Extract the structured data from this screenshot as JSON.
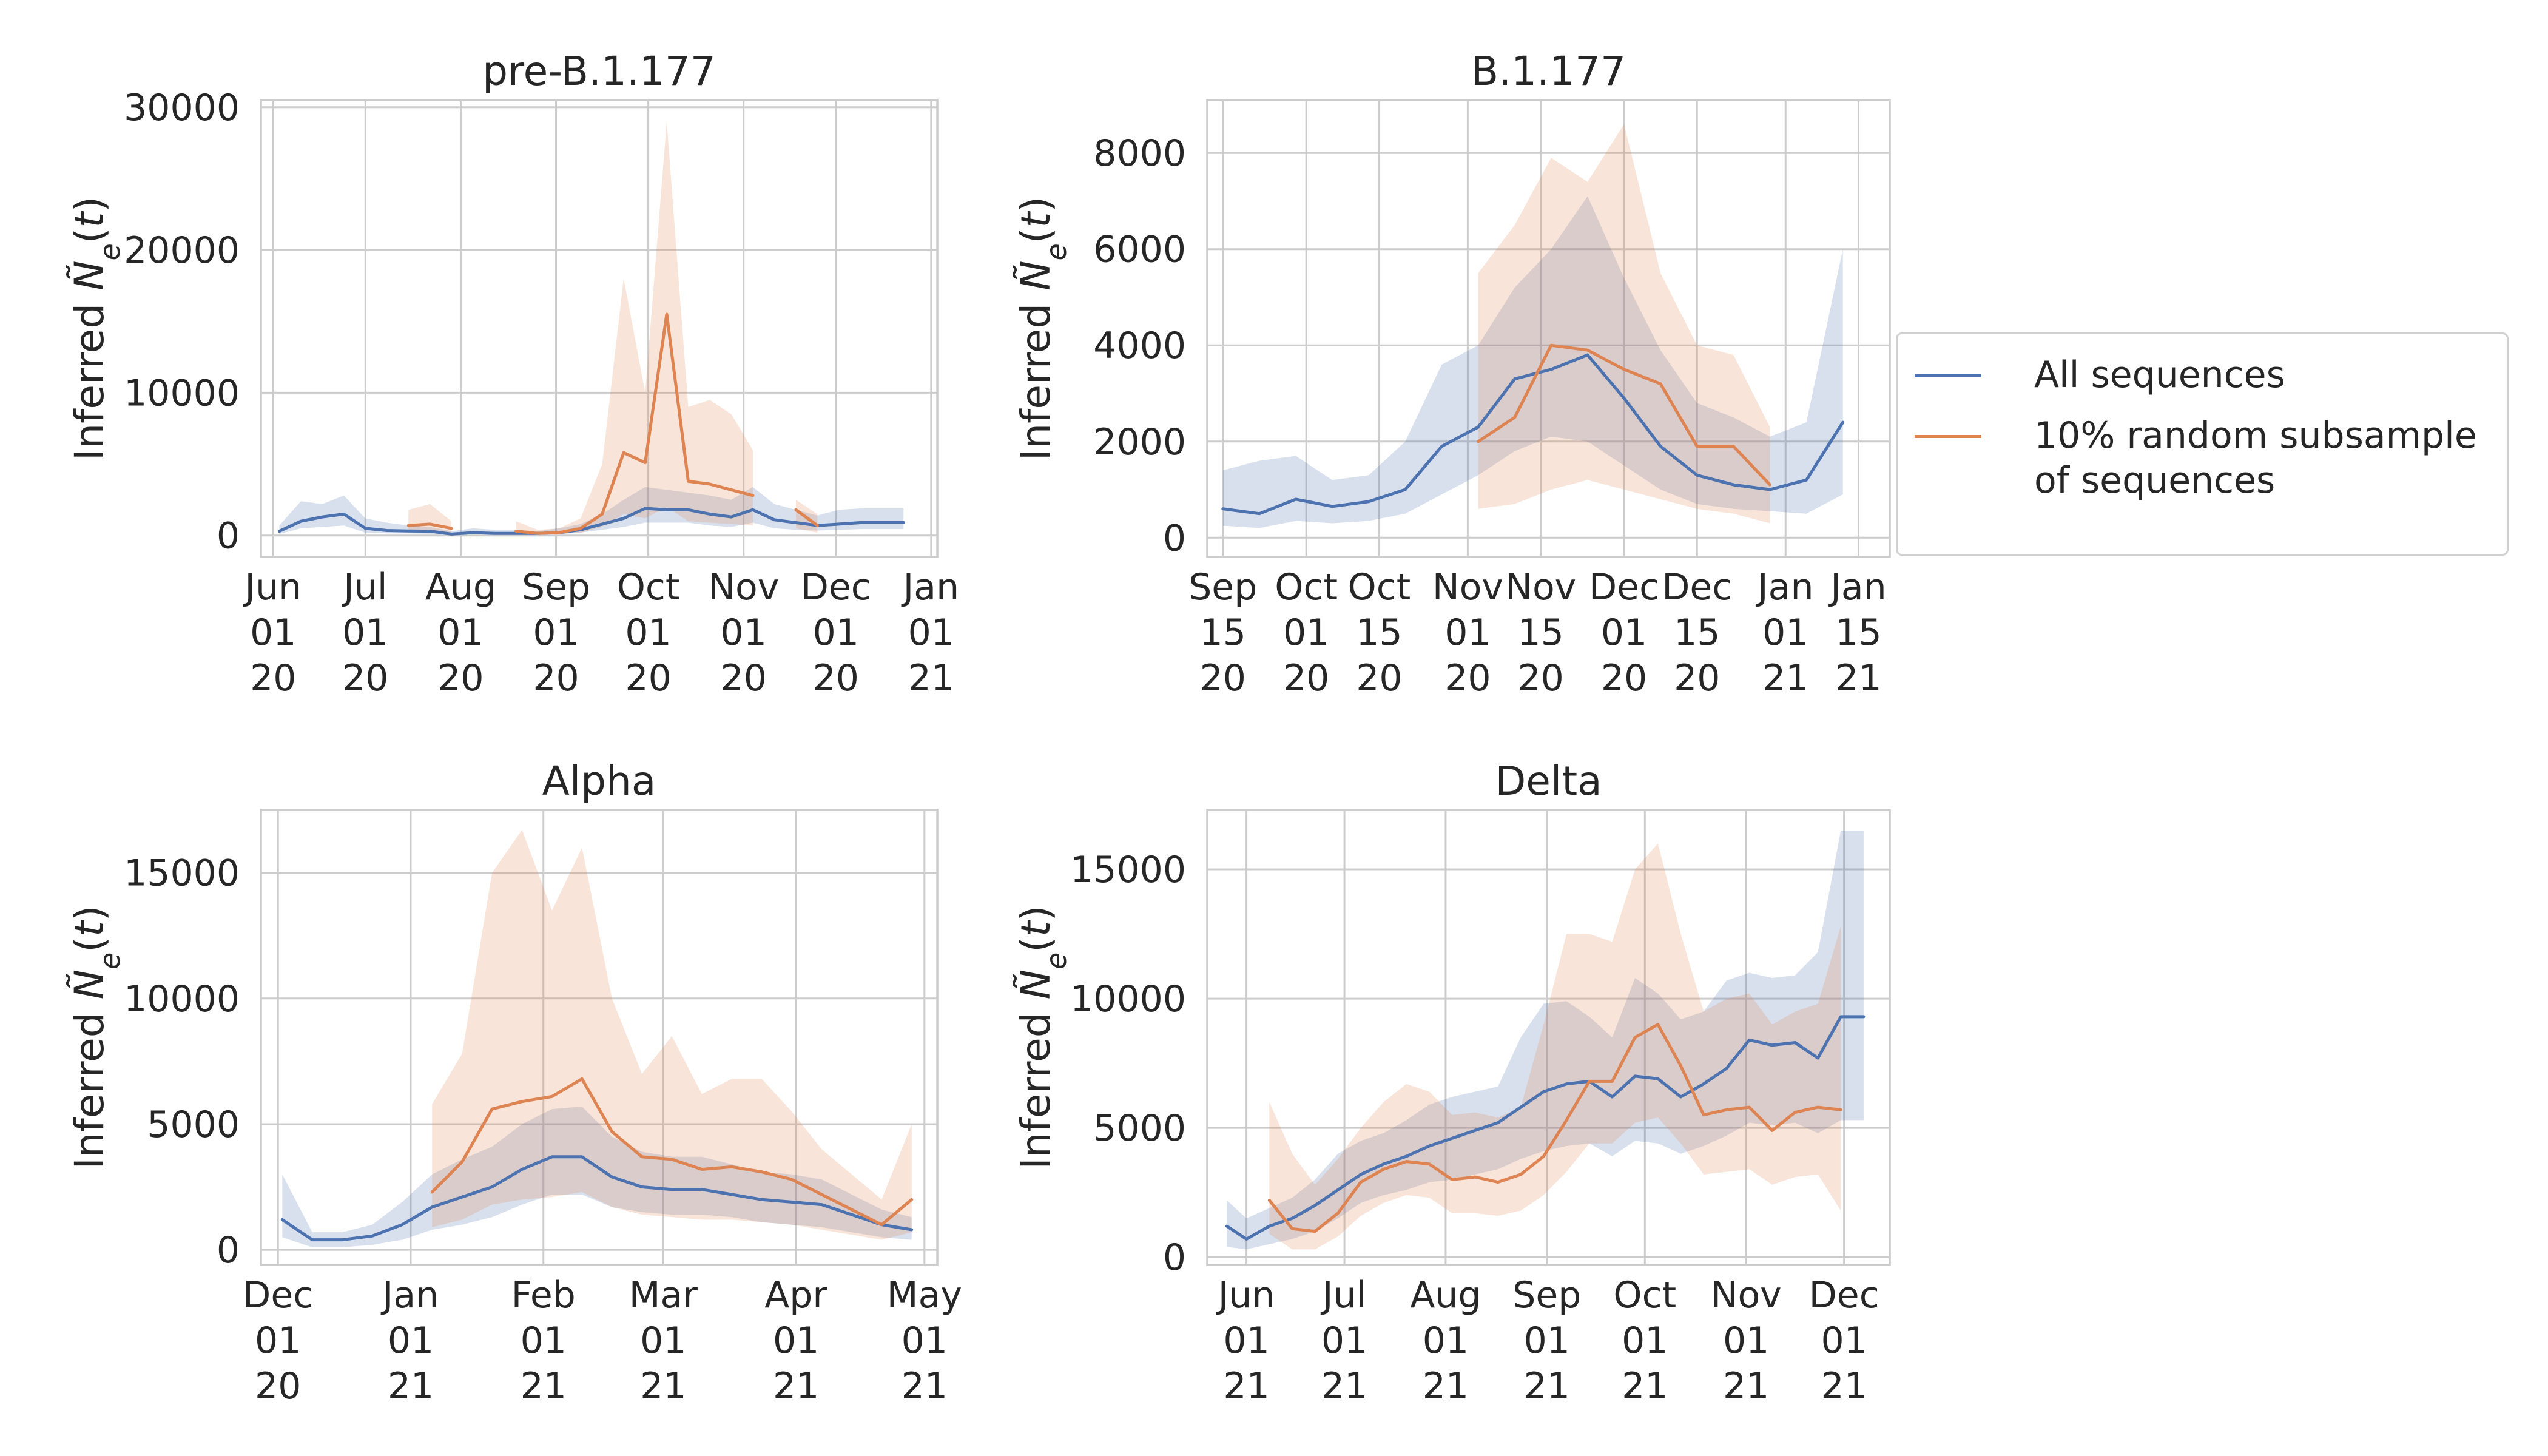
{
  "figure": {
    "legend": {
      "placement": "right",
      "entries": [
        {
          "label": "All sequences",
          "color": "#4c72b0"
        },
        {
          "label": "10% random subsample\nof sequences",
          "color": "#dd8452"
        }
      ]
    }
  },
  "chart_data": [
    {
      "type": "line",
      "title": "pre-B.1.177",
      "xlabel": "",
      "ylabel": "Inferred $\\tilde{N}_e(t)$",
      "xlim": [
        "2020-05-28",
        "2021-01-03"
      ],
      "ylim": [
        -1500,
        30500
      ],
      "yticks": [
        0,
        10000,
        20000,
        30000
      ],
      "xticks": [
        {
          "date": "2020-06-01",
          "label": "Jun\n01\n20"
        },
        {
          "date": "2020-07-01",
          "label": "Jul\n01\n20"
        },
        {
          "date": "2020-08-01",
          "label": "Aug\n01\n20"
        },
        {
          "date": "2020-09-01",
          "label": "Sep\n01\n20"
        },
        {
          "date": "2020-10-01",
          "label": "Oct\n01\n20"
        },
        {
          "date": "2020-11-01",
          "label": "Nov\n01\n20"
        },
        {
          "date": "2020-12-01",
          "label": "Dec\n01\n20"
        },
        {
          "date": "2021-01-01",
          "label": "Jan\n01\n21"
        }
      ],
      "grid": true,
      "series": [
        {
          "name": "All sequences",
          "color": "#4c72b0",
          "x": [
            "2020-06-03",
            "2020-06-10",
            "2020-06-17",
            "2020-06-24",
            "2020-07-01",
            "2020-07-08",
            "2020-07-15",
            "2020-07-22",
            "2020-07-29",
            "2020-08-05",
            "2020-08-12",
            "2020-08-19",
            "2020-08-26",
            "2020-09-02",
            "2020-09-09",
            "2020-09-16",
            "2020-09-23",
            "2020-09-30",
            "2020-10-07",
            "2020-10-14",
            "2020-10-21",
            "2020-10-28",
            "2020-11-04",
            "2020-11-11",
            "2020-11-18",
            "2020-11-25",
            "2020-12-02",
            "2020-12-09",
            "2020-12-16",
            "2020-12-23"
          ],
          "y": [
            300,
            1000,
            1300,
            1500,
            500,
            350,
            320,
            300,
            100,
            200,
            150,
            150,
            150,
            200,
            400,
            800,
            1200,
            1900,
            1800,
            1800,
            1500,
            1300,
            1800,
            1100,
            900,
            700,
            800,
            900,
            900,
            900
          ],
          "lower": [
            100,
            500,
            600,
            700,
            200,
            150,
            150,
            120,
            50,
            100,
            80,
            80,
            80,
            100,
            200,
            400,
            600,
            900,
            900,
            900,
            700,
            600,
            900,
            500,
            400,
            350,
            400,
            450,
            450,
            450
          ],
          "upper": [
            700,
            2400,
            2200,
            2800,
            1200,
            900,
            700,
            600,
            300,
            500,
            400,
            400,
            300,
            500,
            800,
            1500,
            2500,
            3400,
            3200,
            3000,
            2800,
            2500,
            3400,
            2200,
            1800,
            1400,
            1800,
            1900,
            1900,
            1900
          ]
        },
        {
          "name": "10% random subsample\nof sequences",
          "color": "#dd8452",
          "x": [
            "2020-07-15",
            "2020-07-22",
            "2020-07-29",
            "2020-08-05",
            "2020-08-12",
            "2020-08-19",
            "2020-08-26",
            "2020-09-02",
            "2020-09-09",
            "2020-09-16",
            "2020-09-23",
            "2020-09-30",
            "2020-10-07",
            "2020-10-14",
            "2020-10-21",
            "2020-10-28",
            "2020-11-04",
            "2020-11-11",
            "2020-11-18",
            "2020-11-25"
          ],
          "y": [
            700,
            800,
            500,
            null,
            null,
            300,
            150,
            200,
            500,
            1500,
            5800,
            5100,
            15500,
            3800,
            3600,
            3200,
            2800,
            null,
            1800,
            700
          ],
          "lower": [
            300,
            300,
            200,
            null,
            null,
            100,
            50,
            100,
            200,
            600,
            1500,
            1200,
            2000,
            1000,
            900,
            800,
            700,
            null,
            500,
            200
          ],
          "upper": [
            1800,
            2200,
            1000,
            null,
            null,
            1000,
            400,
            500,
            1200,
            5000,
            18000,
            10000,
            29000,
            9000,
            9500,
            8500,
            6000,
            null,
            2500,
            1500
          ]
        }
      ]
    },
    {
      "type": "line",
      "title": "B.1.177",
      "xlabel": "",
      "ylabel": "Inferred $\\tilde{N}_e(t)$",
      "xlim": [
        "2020-09-12",
        "2021-01-21"
      ],
      "ylim": [
        -400,
        9100
      ],
      "yticks": [
        0,
        2000,
        4000,
        6000,
        8000
      ],
      "xticks": [
        {
          "date": "2020-09-15",
          "label": "Sep\n15\n20"
        },
        {
          "date": "2020-10-01",
          "label": "Oct\n01\n20"
        },
        {
          "date": "2020-10-15",
          "label": "Oct\n15\n20"
        },
        {
          "date": "2020-11-01",
          "label": "Nov\n01\n20"
        },
        {
          "date": "2020-11-15",
          "label": "Nov\n15\n20"
        },
        {
          "date": "2020-12-01",
          "label": "Dec\n01\n20"
        },
        {
          "date": "2020-12-15",
          "label": "Dec\n15\n20"
        },
        {
          "date": "2021-01-01",
          "label": "Jan\n01\n21"
        },
        {
          "date": "2021-01-15",
          "label": "Jan\n15\n21"
        }
      ],
      "grid": true,
      "series": [
        {
          "name": "All sequences",
          "color": "#4c72b0",
          "x": [
            "2020-09-15",
            "2020-09-22",
            "2020-09-29",
            "2020-10-06",
            "2020-10-13",
            "2020-10-20",
            "2020-10-27",
            "2020-11-03",
            "2020-11-10",
            "2020-11-17",
            "2020-11-24",
            "2020-12-01",
            "2020-12-08",
            "2020-12-15",
            "2020-12-22",
            "2020-12-29",
            "2021-01-05",
            "2021-01-12"
          ],
          "y": [
            600,
            500,
            800,
            650,
            750,
            1000,
            1900,
            2300,
            3300,
            3500,
            3800,
            2900,
            1900,
            1300,
            1100,
            1000,
            1200,
            2400
          ],
          "lower": [
            250,
            200,
            350,
            300,
            350,
            500,
            900,
            1300,
            1800,
            2100,
            2000,
            1500,
            1000,
            700,
            600,
            550,
            500,
            900
          ],
          "upper": [
            1400,
            1600,
            1700,
            1200,
            1300,
            2000,
            3600,
            4000,
            5200,
            6000,
            7100,
            5400,
            3900,
            2800,
            2500,
            2100,
            2400,
            6000
          ]
        },
        {
          "name": "10% random subsample\nof sequences",
          "color": "#dd8452",
          "x": [
            "2020-11-03",
            "2020-11-10",
            "2020-11-17",
            "2020-11-24",
            "2020-12-01",
            "2020-12-08",
            "2020-12-15",
            "2020-12-22",
            "2020-12-29"
          ],
          "y": [
            2000,
            2500,
            4000,
            3900,
            3500,
            3200,
            1900,
            1900,
            1100
          ],
          "lower": [
            600,
            700,
            1000,
            1200,
            1000,
            800,
            600,
            500,
            300
          ],
          "upper": [
            5500,
            6500,
            7900,
            7400,
            8600,
            5500,
            4000,
            3800,
            2300
          ]
        }
      ]
    },
    {
      "type": "line",
      "title": "Alpha",
      "xlabel": "",
      "ylabel": "Inferred $\\tilde{N}_e(t)$",
      "xlim": [
        "2020-11-27",
        "2021-05-04"
      ],
      "ylim": [
        -600,
        17500
      ],
      "yticks": [
        0,
        5000,
        10000,
        15000
      ],
      "xticks": [
        {
          "date": "2020-12-01",
          "label": "Dec\n01\n20"
        },
        {
          "date": "2021-01-01",
          "label": "Jan\n01\n21"
        },
        {
          "date": "2021-02-01",
          "label": "Feb\n01\n21"
        },
        {
          "date": "2021-03-01",
          "label": "Mar\n01\n21"
        },
        {
          "date": "2021-04-01",
          "label": "Apr\n01\n21"
        },
        {
          "date": "2021-05-01",
          "label": "May\n01\n21"
        }
      ],
      "grid": true,
      "series": [
        {
          "name": "All sequences",
          "color": "#4c72b0",
          "x": [
            "2020-12-02",
            "2020-12-09",
            "2020-12-16",
            "2020-12-23",
            "2020-12-30",
            "2021-01-06",
            "2021-01-13",
            "2021-01-20",
            "2021-01-27",
            "2021-02-03",
            "2021-02-10",
            "2021-02-17",
            "2021-02-24",
            "2021-03-03",
            "2021-03-10",
            "2021-03-17",
            "2021-03-24",
            "2021-03-31",
            "2021-04-07",
            "2021-04-14",
            "2021-04-21",
            "2021-04-28"
          ],
          "y": [
            1200,
            400,
            400,
            550,
            1000,
            1700,
            2100,
            2500,
            3200,
            3700,
            3700,
            2900,
            2500,
            2400,
            2400,
            2200,
            2000,
            1900,
            1800,
            1400,
            1000,
            800
          ],
          "lower": [
            500,
            100,
            100,
            200,
            400,
            800,
            1000,
            1300,
            1800,
            2200,
            2200,
            1700,
            1500,
            1400,
            1400,
            1300,
            1100,
            1000,
            900,
            700,
            500,
            400
          ],
          "upper": [
            3000,
            700,
            700,
            1000,
            1900,
            3000,
            3600,
            4100,
            5000,
            5600,
            5700,
            4500,
            3900,
            3700,
            3700,
            3400,
            3100,
            3000,
            2800,
            2200,
            1600,
            1300
          ]
        },
        {
          "name": "10% random subsample\nof sequences",
          "color": "#dd8452",
          "x": [
            "2021-01-06",
            "2021-01-13",
            "2021-01-20",
            "2021-01-27",
            "2021-02-03",
            "2021-02-10",
            "2021-02-17",
            "2021-02-24",
            "2021-03-03",
            "2021-03-10",
            "2021-03-17",
            "2021-03-24",
            "2021-03-31",
            "2021-04-07",
            "2021-04-14",
            "2021-04-21",
            "2021-04-28"
          ],
          "y": [
            2300,
            3500,
            5600,
            5900,
            6100,
            6800,
            4700,
            3700,
            3600,
            3200,
            3300,
            3100,
            2800,
            2200,
            1600,
            1000,
            2000
          ],
          "lower": [
            900,
            1200,
            1800,
            2000,
            2100,
            2300,
            1700,
            1400,
            1300,
            1200,
            1200,
            1100,
            1000,
            800,
            600,
            400,
            700
          ],
          "upper": [
            5800,
            7800,
            15000,
            16700,
            13500,
            16000,
            10000,
            7000,
            8500,
            6200,
            6800,
            6800,
            5500,
            4000,
            3000,
            2000,
            5000
          ]
        }
      ]
    },
    {
      "type": "line",
      "title": "Delta",
      "xlabel": "",
      "ylabel": "Inferred $\\tilde{N}_e(t)$",
      "xlim": [
        "2021-05-20",
        "2021-12-15"
      ],
      "ylim": [
        -300,
        17300
      ],
      "yticks": [
        0,
        5000,
        10000,
        15000
      ],
      "xticks": [
        {
          "date": "2021-06-01",
          "label": "Jun\n01\n21"
        },
        {
          "date": "2021-07-01",
          "label": "Jul\n01\n21"
        },
        {
          "date": "2021-08-01",
          "label": "Aug\n01\n21"
        },
        {
          "date": "2021-09-01",
          "label": "Sep\n01\n21"
        },
        {
          "date": "2021-10-01",
          "label": "Oct\n01\n21"
        },
        {
          "date": "2021-11-01",
          "label": "Nov\n01\n21"
        },
        {
          "date": "2021-12-01",
          "label": "Dec\n01\n21"
        }
      ],
      "grid": true,
      "series": [
        {
          "name": "All sequences",
          "color": "#4c72b0",
          "x": [
            "2021-05-26",
            "2021-06-01",
            "2021-06-08",
            "2021-06-15",
            "2021-06-22",
            "2021-06-29",
            "2021-07-06",
            "2021-07-13",
            "2021-07-20",
            "2021-07-27",
            "2021-08-03",
            "2021-08-10",
            "2021-08-17",
            "2021-08-24",
            "2021-08-31",
            "2021-09-07",
            "2021-09-14",
            "2021-09-21",
            "2021-09-28",
            "2021-10-05",
            "2021-10-12",
            "2021-10-19",
            "2021-10-26",
            "2021-11-02",
            "2021-11-09",
            "2021-11-16",
            "2021-11-23",
            "2021-11-30",
            "2021-12-07"
          ],
          "y": [
            1200,
            700,
            1200,
            1500,
            2000,
            2600,
            3200,
            3600,
            3900,
            4300,
            4600,
            4900,
            5200,
            5800,
            6400,
            6700,
            6800,
            6200,
            7000,
            6900,
            6200,
            6700,
            7300,
            8400,
            8200,
            8300,
            7700,
            9300,
            9300
          ],
          "lower": [
            400,
            300,
            500,
            700,
            1000,
            1500,
            2100,
            2400,
            2600,
            2900,
            3000,
            3200,
            3400,
            3800,
            4100,
            4300,
            4400,
            3900,
            4500,
            4400,
            4000,
            4300,
            4700,
            5200,
            5100,
            5200,
            4800,
            5300,
            5300
          ],
          "upper": [
            2200,
            1500,
            1900,
            2300,
            3000,
            4000,
            4500,
            4800,
            5300,
            5900,
            6200,
            6400,
            6600,
            8500,
            9800,
            9900,
            9300,
            8500,
            10800,
            10200,
            9200,
            9500,
            10700,
            11000,
            10800,
            10900,
            11800,
            16500,
            16500
          ]
        },
        {
          "name": "10% random subsample\nof sequences",
          "color": "#dd8452",
          "x": [
            "2021-06-08",
            "2021-06-15",
            "2021-06-22",
            "2021-06-29",
            "2021-07-06",
            "2021-07-13",
            "2021-07-20",
            "2021-07-27",
            "2021-08-03",
            "2021-08-10",
            "2021-08-17",
            "2021-08-24",
            "2021-08-31",
            "2021-09-07",
            "2021-09-14",
            "2021-09-21",
            "2021-09-28",
            "2021-10-05",
            "2021-10-12",
            "2021-10-19",
            "2021-10-26",
            "2021-11-02",
            "2021-11-09",
            "2021-11-16",
            "2021-11-23",
            "2021-11-30"
          ],
          "y": [
            2200,
            1100,
            1000,
            1700,
            2900,
            3400,
            3700,
            3600,
            3000,
            3100,
            2900,
            3200,
            3900,
            5300,
            6800,
            6800,
            8500,
            9000,
            7400,
            5500,
            5700,
            5800,
            4900,
            5600,
            5800,
            5700
          ],
          "lower": [
            900,
            300,
            300,
            800,
            1600,
            2100,
            2400,
            2300,
            1700,
            1700,
            1600,
            1800,
            2400,
            3300,
            4400,
            4400,
            5200,
            5400,
            4400,
            3200,
            3300,
            3400,
            2800,
            3100,
            3200,
            1800
          ],
          "upper": [
            6000,
            4000,
            2800,
            3800,
            5000,
            6000,
            6700,
            6400,
            5500,
            5600,
            5400,
            5800,
            9000,
            12500,
            12500,
            12200,
            15000,
            16000,
            12500,
            9500,
            10000,
            10200,
            9000,
            9500,
            9800,
            12800
          ]
        }
      ]
    }
  ]
}
